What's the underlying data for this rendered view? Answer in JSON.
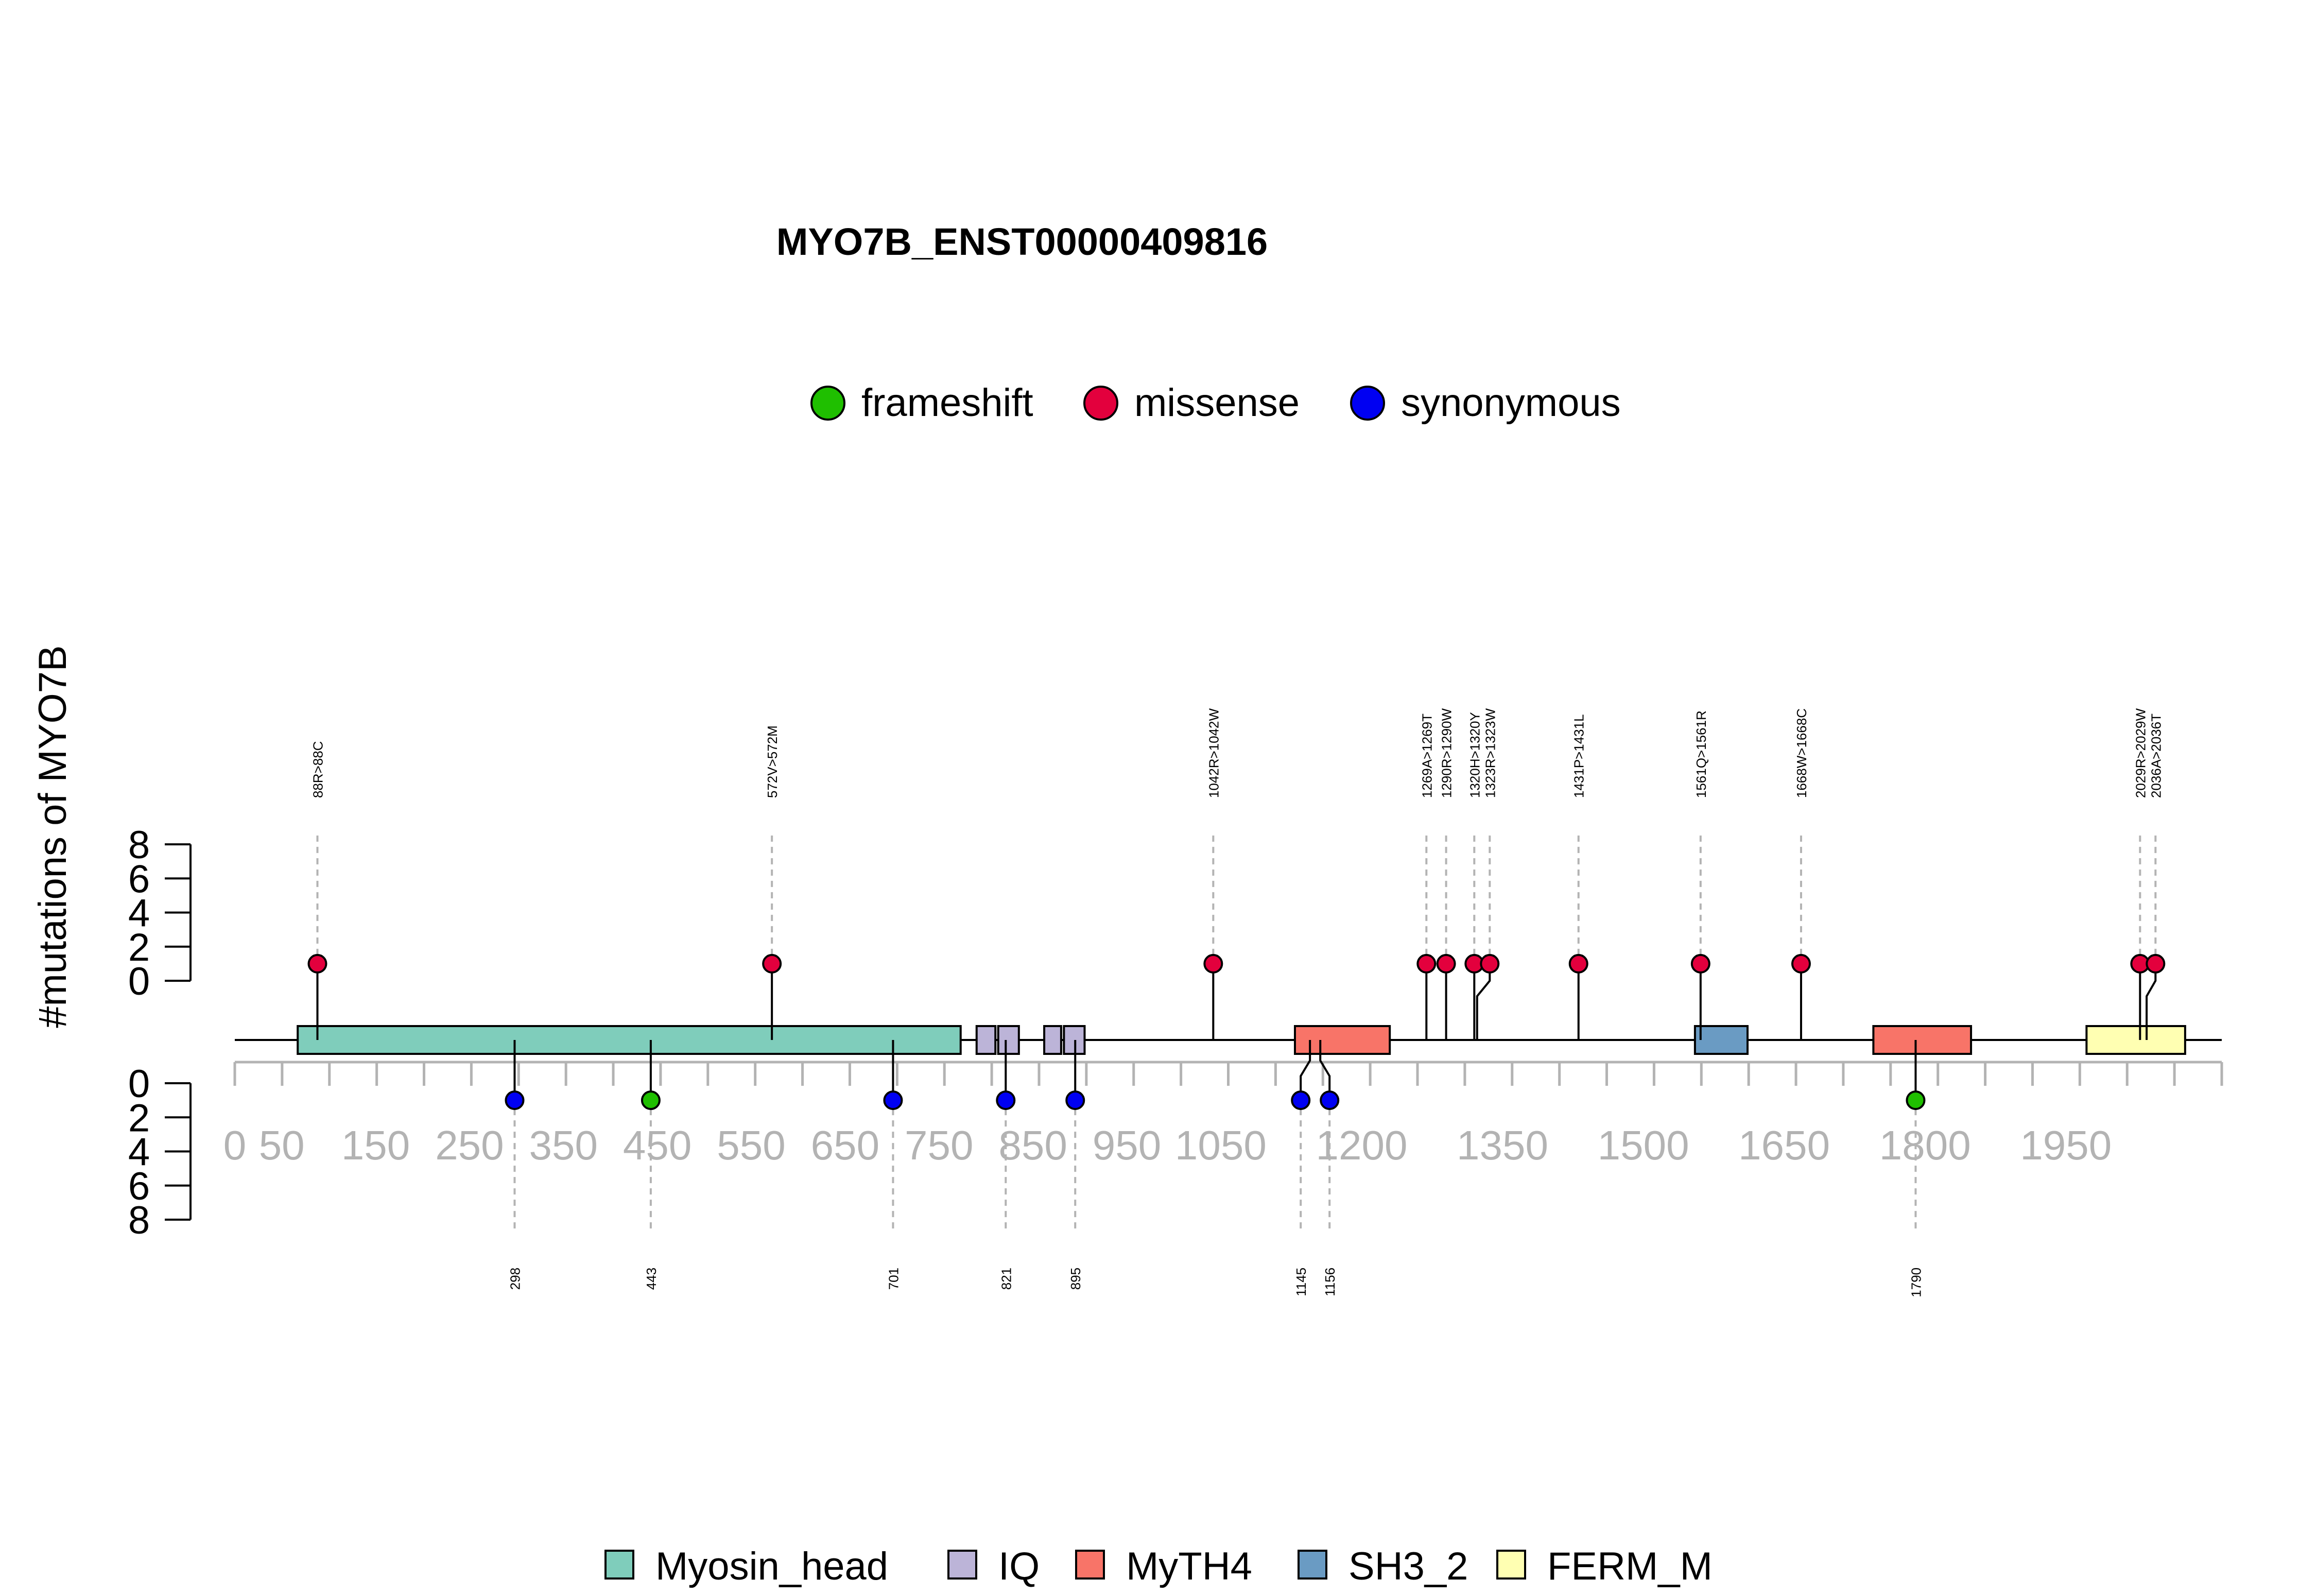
{
  "chart_data": {
    "type": "lollipop",
    "title": "MYO7B_ENST00000409816",
    "ylabel": "#mutations of MYO7B",
    "protein_length": 2116,
    "ylim": [
      0,
      8
    ],
    "yticks": [
      "0",
      "2",
      "4",
      "6",
      "8"
    ],
    "xticks": [
      0,
      50,
      150,
      250,
      350,
      450,
      550,
      650,
      750,
      850,
      950,
      1050,
      1200,
      1350,
      1500,
      1650,
      1800,
      1950
    ],
    "mutation_legend": [
      {
        "name": "frameshift",
        "color": "#1fbf00"
      },
      {
        "name": "missense",
        "color": "#e3003d"
      },
      {
        "name": "synonymous",
        "color": "#0000f2"
      }
    ],
    "domain_legend": [
      {
        "name": "Myosin_head",
        "color": "#7fcdbb"
      },
      {
        "name": "IQ",
        "color": "#bcb4d8"
      },
      {
        "name": "MyTH4",
        "color": "#f87468"
      },
      {
        "name": "SH3_2",
        "color": "#6a9bc3"
      },
      {
        "name": "FERM_M",
        "color": "#ffffb2"
      }
    ],
    "domains": [
      {
        "name": "Myosin_head",
        "start": 67,
        "end": 773
      },
      {
        "name": "IQ",
        "start": 790,
        "end": 810
      },
      {
        "name": "IQ",
        "start": 813,
        "end": 835
      },
      {
        "name": "IQ",
        "start": 862,
        "end": 880
      },
      {
        "name": "IQ",
        "start": 883,
        "end": 905
      },
      {
        "name": "MyTH4",
        "start": 1129,
        "end": 1230
      },
      {
        "name": "SH3_2",
        "start": 1555,
        "end": 1611
      },
      {
        "name": "MyTH4",
        "start": 1745,
        "end": 1849
      },
      {
        "name": "FERM_M",
        "start": 1972,
        "end": 2077
      }
    ],
    "mutations_top": [
      {
        "label": "88R>88C",
        "position": 88,
        "count": 1,
        "type": "missense"
      },
      {
        "label": "572V>572M",
        "position": 572,
        "count": 1,
        "type": "missense"
      },
      {
        "label": "1042R>1042W",
        "position": 1042,
        "count": 1,
        "type": "missense"
      },
      {
        "label": "1269A>1269T",
        "position": 1269,
        "count": 1,
        "type": "missense"
      },
      {
        "label": "1290R>1290W",
        "position": 1290,
        "count": 1,
        "type": "missense"
      },
      {
        "label": "1320H>1320Y",
        "position": 1320,
        "count": 1,
        "type": "missense"
      },
      {
        "label": "1323R>1323W",
        "position": 1323,
        "count": 1,
        "type": "missense"
      },
      {
        "label": "1431P>1431L",
        "position": 1431,
        "count": 1,
        "type": "missense"
      },
      {
        "label": "1561Q>1561R",
        "position": 1561,
        "count": 1,
        "type": "missense"
      },
      {
        "label": "1668W>1668C",
        "position": 1668,
        "count": 1,
        "type": "missense"
      },
      {
        "label": "2029R>2029W",
        "position": 2029,
        "count": 1,
        "type": "missense"
      },
      {
        "label": "2036A>2036T",
        "position": 2036,
        "count": 1,
        "type": "missense"
      }
    ],
    "mutations_bottom": [
      {
        "label": "298",
        "position": 298,
        "count": 1,
        "type": "synonymous"
      },
      {
        "label": "443",
        "position": 443,
        "count": 1,
        "type": "frameshift"
      },
      {
        "label": "701",
        "position": 701,
        "count": 1,
        "type": "synonymous"
      },
      {
        "label": "821",
        "position": 821,
        "count": 1,
        "type": "synonymous"
      },
      {
        "label": "895",
        "position": 895,
        "count": 1,
        "type": "synonymous"
      },
      {
        "label": "1145",
        "position": 1145,
        "count": 1,
        "type": "synonymous"
      },
      {
        "label": "1156",
        "position": 1156,
        "count": 1,
        "type": "synonymous"
      },
      {
        "label": "1790",
        "position": 1790,
        "count": 1,
        "type": "frameshift"
      }
    ]
  }
}
